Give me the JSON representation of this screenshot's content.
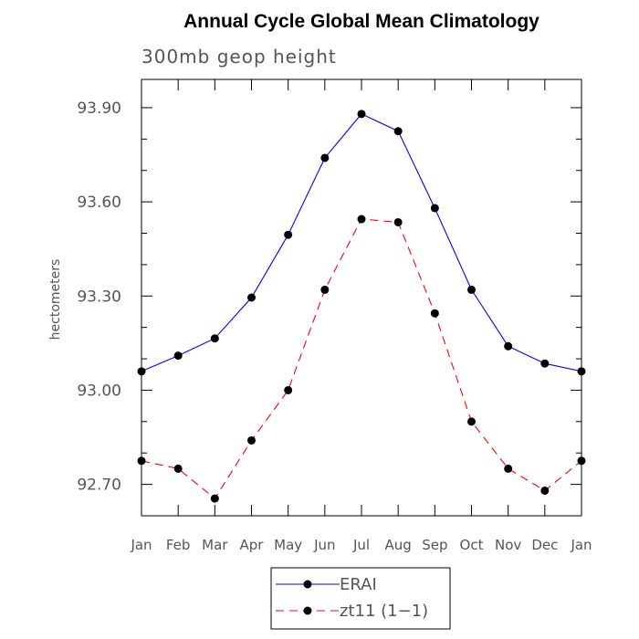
{
  "chart_data": {
    "type": "line",
    "title": "Annual Cycle Global Mean Climatology",
    "subtitle": "300mb geop height",
    "ylabel": "hectometers",
    "xlabel": "",
    "categories": [
      "Jan",
      "Feb",
      "Mar",
      "Apr",
      "May",
      "Jun",
      "Jul",
      "Aug",
      "Sep",
      "Oct",
      "Nov",
      "Dec",
      "Jan"
    ],
    "yticks": [
      "92.70",
      "93.00",
      "93.30",
      "93.60",
      "93.90"
    ],
    "ylim": [
      92.6,
      93.99
    ],
    "grid": false,
    "legend_position": "bottom-center",
    "series": [
      {
        "name": "ERAI",
        "color": "#0000ff",
        "line_style": "solid",
        "values": [
          93.06,
          93.11,
          93.165,
          93.295,
          93.495,
          93.74,
          93.88,
          93.825,
          93.58,
          93.32,
          93.14,
          93.085,
          93.06
        ]
      },
      {
        "name": "zt11 (1−1)",
        "color": "#ff0000",
        "line_style": "dashed",
        "values": [
          92.775,
          92.75,
          92.655,
          92.84,
          93.0,
          93.32,
          93.545,
          93.535,
          93.245,
          92.9,
          92.75,
          92.68,
          92.775
        ]
      }
    ]
  }
}
